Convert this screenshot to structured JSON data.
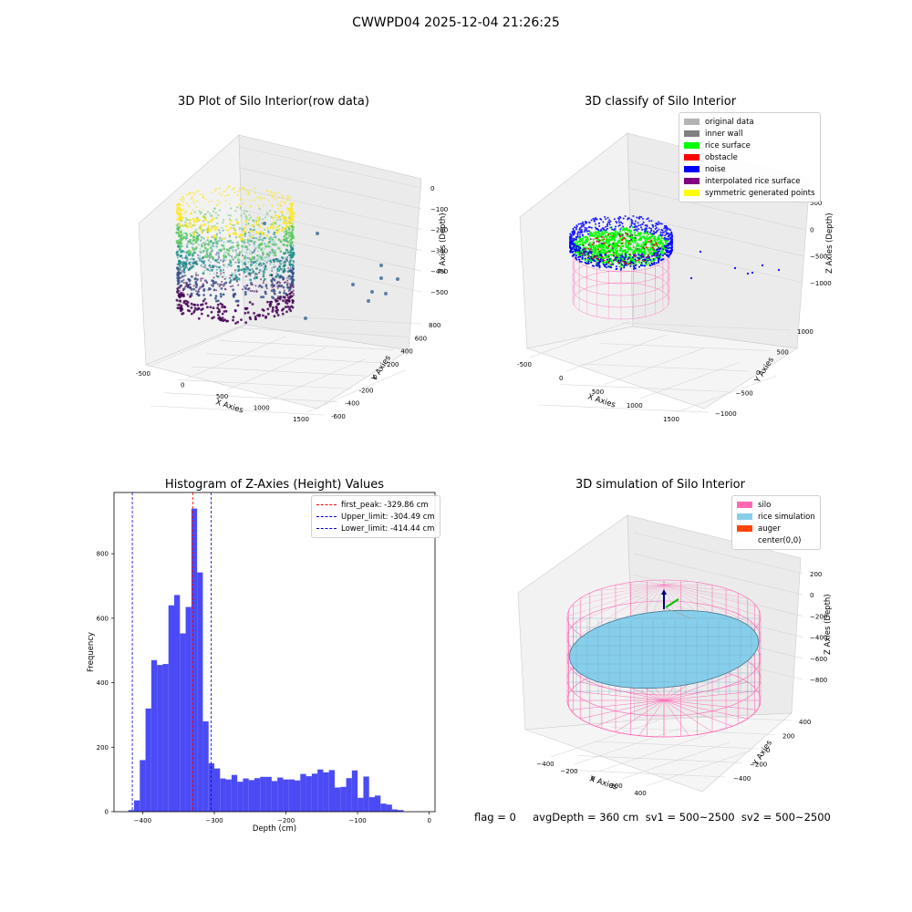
{
  "figure": {
    "title": "CWWPD04 2025-12-04 21:26:25"
  },
  "footer": {
    "text": "flag = 0     avgDepth = 360 cm  sv1 = 500~2500  sv2 = 500~2500"
  },
  "colors": {
    "hist_bar": "#4b4bf5",
    "peak_line": "#ff0000",
    "limit_line": "#0000cc",
    "pane": "#f2f2f2",
    "grid": "#d9d9d9"
  },
  "chart_data": [
    {
      "id": "raw",
      "type": "scatter",
      "title": "3D Plot of Silo Interior(row data)",
      "xlabel": "X Axies",
      "ylabel": "Y Axies",
      "zlabel": "Z Axies (Depth)",
      "x_ticks": [
        "-500",
        "0",
        "500",
        "1000",
        "1500"
      ],
      "y_ticks": [
        "-600",
        "-400",
        "-200",
        "0",
        "200",
        "400",
        "600",
        "800"
      ],
      "z_ticks": [
        "0",
        "−100",
        "−200",
        "−300",
        "−400",
        "−500"
      ],
      "colormap": "viridis"
    },
    {
      "id": "classify",
      "type": "scatter",
      "title": "3D classify of Silo Interior",
      "xlabel": "X Axies",
      "ylabel": "Y Axies",
      "zlabel": "Z Axies (Depth)",
      "x_ticks": [
        "-500",
        "0",
        "500",
        "1000",
        "1500"
      ],
      "y_ticks": [
        "−1000",
        "−500",
        "0",
        "500",
        "1000"
      ],
      "z_ticks": [
        "500",
        "0",
        "−500",
        "−1000"
      ],
      "legend": [
        {
          "label": "original data",
          "color": "#b3b3b3"
        },
        {
          "label": "inner wall",
          "color": "#808080"
        },
        {
          "label": "rice surface",
          "color": "#00ff00"
        },
        {
          "label": "obstacle",
          "color": "#ff0000"
        },
        {
          "label": "noise",
          "color": "#0000ff"
        },
        {
          "label": "interpolated rice surface",
          "color": "#800080"
        },
        {
          "label": "symmetric generated points",
          "color": "#ffff00"
        }
      ]
    },
    {
      "id": "hist",
      "type": "bar",
      "title": "Histogram of Z-Axies (Height) Values",
      "xlabel": "Depth (cm)",
      "ylabel": "Frequency",
      "xlim": [
        -440,
        8
      ],
      "ylim": [
        0,
        990
      ],
      "x_ticks": [
        -400,
        -300,
        -200,
        -100,
        0
      ],
      "y_ticks": [
        0,
        200,
        400,
        600,
        800
      ],
      "bin_start": -420,
      "bin_width": 8,
      "values": [
        5,
        35,
        160,
        320,
        470,
        455,
        458,
        640,
        672,
        553,
        635,
        940,
        742,
        280,
        150,
        134,
        103,
        100,
        114,
        93,
        103,
        98,
        104,
        108,
        108,
        95,
        106,
        100,
        100,
        97,
        117,
        110,
        118,
        131,
        122,
        129,
        75,
        77,
        104,
        128,
        43,
        109,
        45,
        50,
        25,
        22,
        7,
        5
      ],
      "vlines": [
        {
          "label": "first_peak: -329.86 cm",
          "x": -329.86,
          "color": "#ff0000"
        },
        {
          "label": "Upper_limit: -304.49 cm",
          "x": -304.49,
          "color": "#0000cc"
        },
        {
          "label": "Lower_limit: -414.44 cm",
          "x": -414.44,
          "color": "#0000cc"
        }
      ]
    },
    {
      "id": "sim",
      "type": "scatter",
      "title": "3D simulation of Silo Interior",
      "xlabel": "X Axies",
      "ylabel": "Y Axies",
      "zlabel": "Z Axies (Depth)",
      "x_ticks": [
        "−400",
        "−200",
        "0",
        "200",
        "400"
      ],
      "y_ticks": [
        "−400",
        "−200",
        "0",
        "200",
        "400"
      ],
      "z_ticks": [
        "200",
        "0",
        "−200",
        "−400",
        "−600",
        "−800"
      ],
      "legend": [
        {
          "label": "silo",
          "color": "#ff69b4"
        },
        {
          "label": "rice simulation",
          "color": "#87ceeb"
        },
        {
          "label": "auger",
          "color": "#ff4500"
        },
        {
          "label": "center(0,0)",
          "color": "none"
        }
      ]
    }
  ]
}
